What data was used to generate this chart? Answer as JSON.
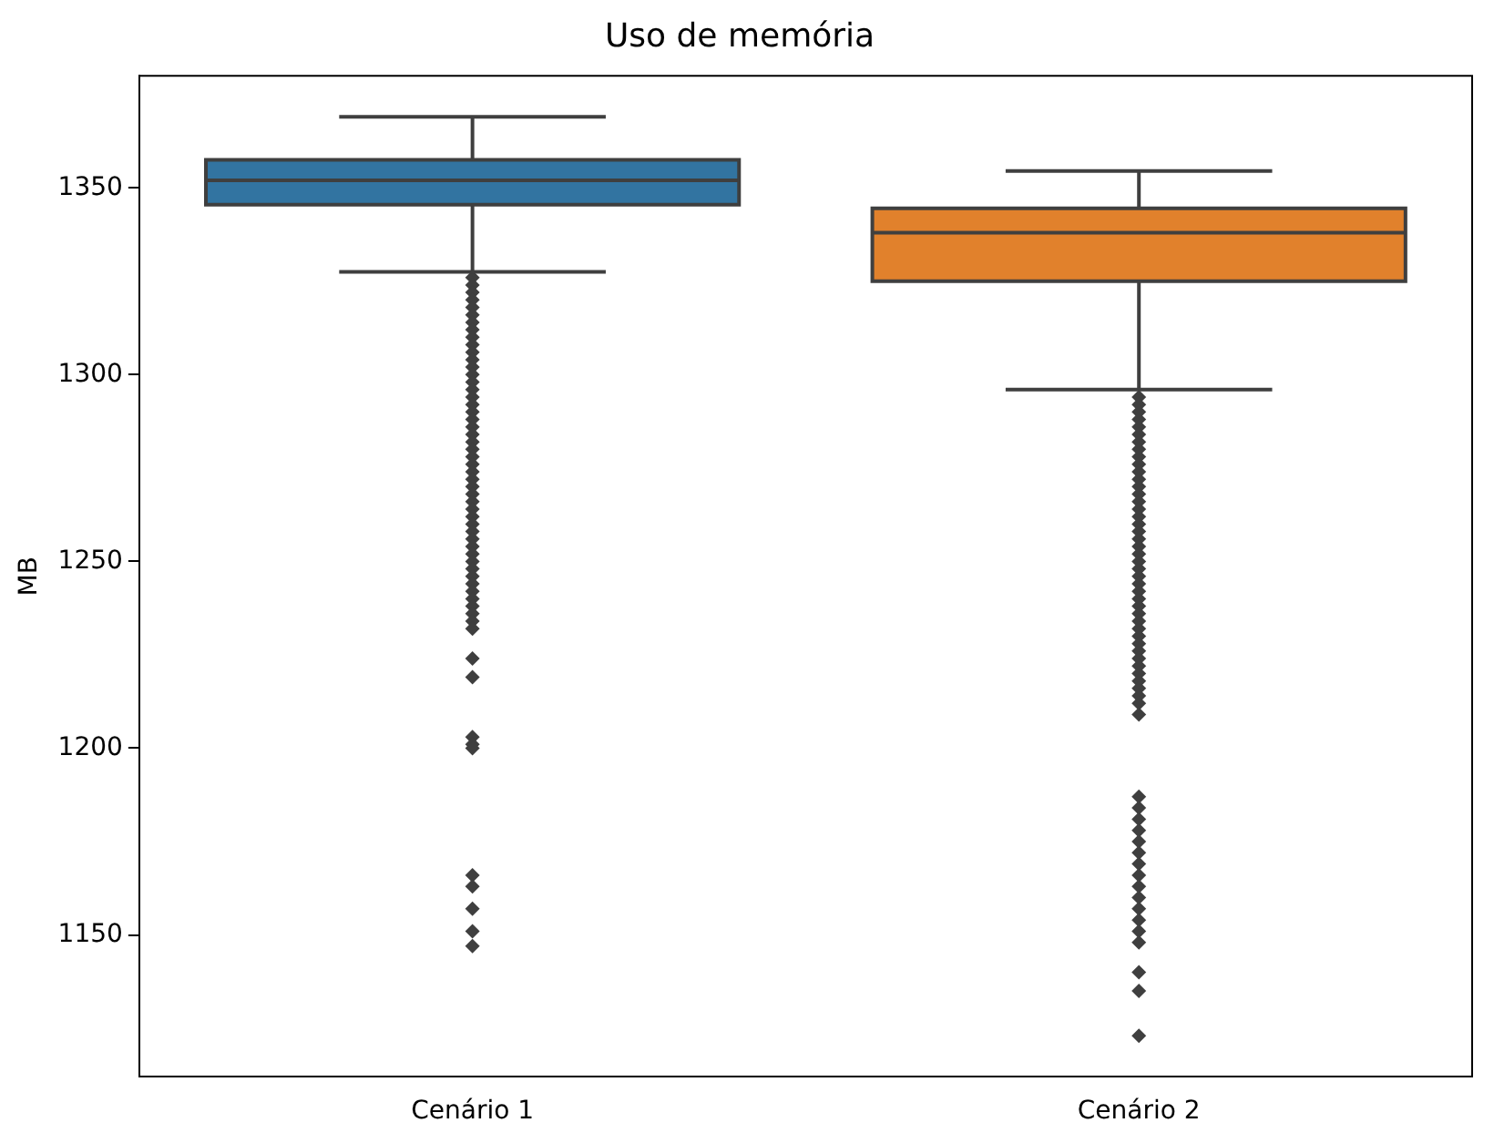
{
  "chart_data": {
    "type": "box",
    "title": "Uso de memória",
    "ylabel": "MB",
    "categories": [
      "Cenário 1",
      "Cenário 2"
    ],
    "colors": [
      "#3274a1",
      "#e1812c"
    ],
    "boxes": [
      {
        "low": 1327.5,
        "q1": 1345.5,
        "median": 1352,
        "q3": 1357.5,
        "high": 1369,
        "outliers": [
          1326,
          1324,
          1322,
          1320,
          1318,
          1316,
          1314,
          1312,
          1310,
          1308,
          1306,
          1304,
          1302,
          1300,
          1298,
          1296,
          1294,
          1292,
          1290,
          1288,
          1286,
          1284,
          1282,
          1280,
          1278,
          1276,
          1274,
          1272,
          1270,
          1268,
          1266,
          1264,
          1262,
          1260,
          1258,
          1256,
          1254,
          1252,
          1250,
          1248,
          1246,
          1244,
          1242,
          1240,
          1238,
          1236,
          1234,
          1232,
          1224,
          1219,
          1203,
          1201,
          1200,
          1166,
          1163,
          1157,
          1151,
          1147
        ]
      },
      {
        "low": 1296,
        "q1": 1325,
        "median": 1338,
        "q3": 1344.5,
        "high": 1354.5,
        "outliers": [
          1294,
          1292,
          1290,
          1288,
          1286,
          1284,
          1282,
          1280,
          1278,
          1276,
          1274,
          1272,
          1270,
          1268,
          1266,
          1264,
          1262,
          1260,
          1258,
          1256,
          1254,
          1252,
          1250,
          1248,
          1246,
          1244,
          1242,
          1240,
          1238,
          1236,
          1234,
          1232,
          1230,
          1228,
          1226,
          1224,
          1222,
          1220,
          1218,
          1216,
          1214,
          1212,
          1209,
          1187,
          1184,
          1181,
          1178,
          1175,
          1172,
          1169,
          1166,
          1163,
          1160,
          1157,
          1154,
          1151,
          1148,
          1140,
          1135,
          1123
        ]
      }
    ],
    "ylim": [
      1112,
      1380
    ],
    "yticks": [
      1150,
      1200,
      1250,
      1300,
      1350
    ],
    "grid": false,
    "marker": "diamond"
  }
}
